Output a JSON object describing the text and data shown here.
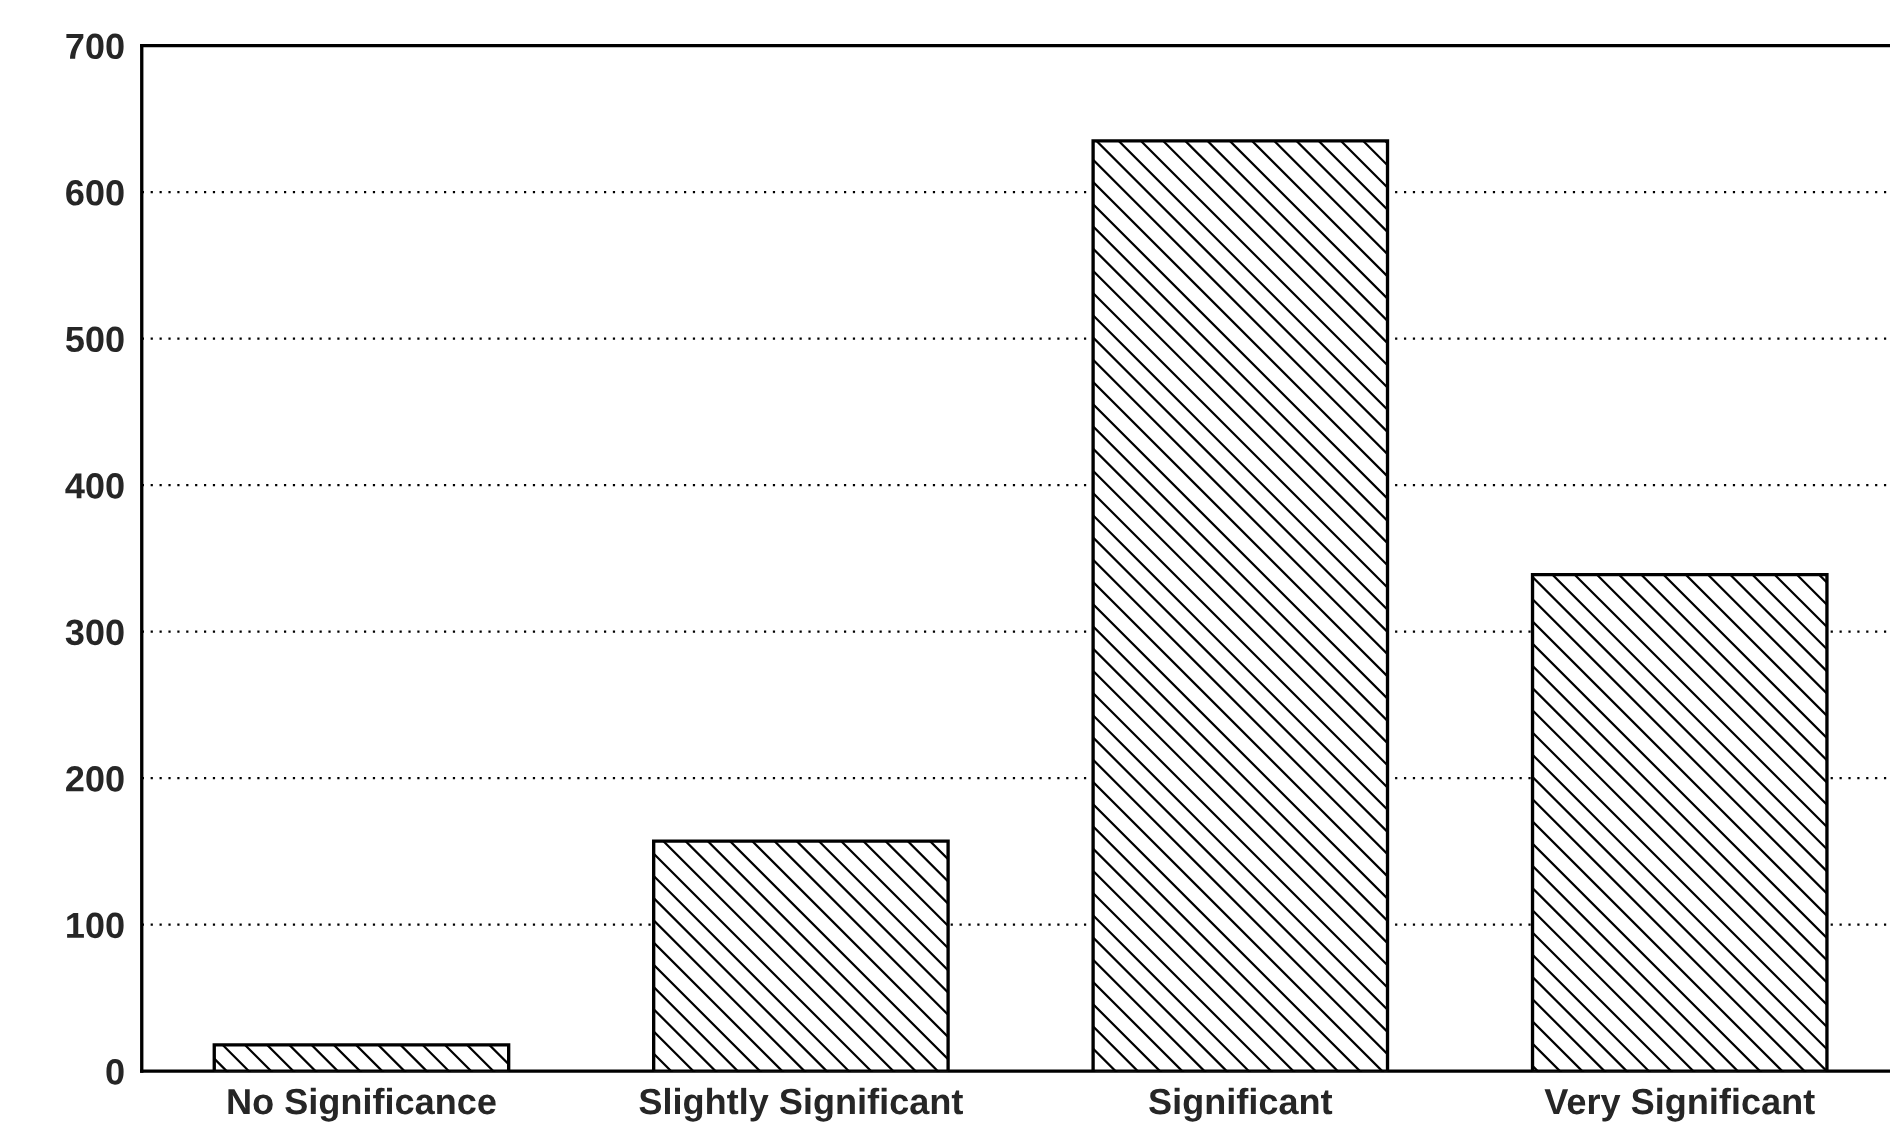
{
  "chart_data": {
    "type": "bar",
    "categories": [
      "No Significance",
      "Slightly Significant",
      "Significant",
      "Very Significant"
    ],
    "values": [
      18,
      157,
      635,
      339
    ],
    "color": "#000000",
    "ylim": [
      0,
      700
    ],
    "yticks": [
      0,
      100,
      200,
      300,
      400,
      500,
      600,
      700
    ],
    "grid": "y"
  }
}
